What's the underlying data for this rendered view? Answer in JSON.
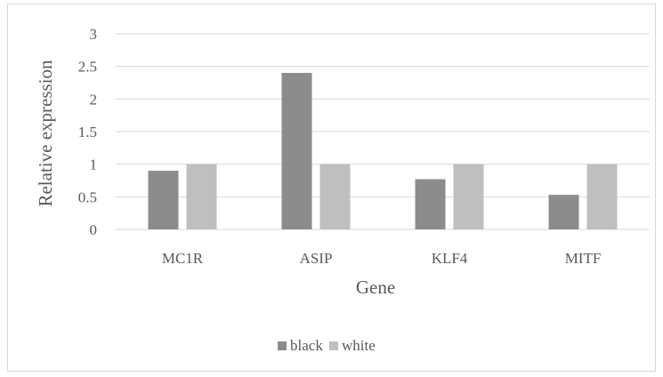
{
  "chart_data": {
    "type": "bar",
    "categories": [
      "MC1R",
      "ASIP",
      "KLF4",
      "MITF"
    ],
    "series": [
      {
        "name": "black",
        "values": [
          0.9,
          2.4,
          0.77,
          0.53
        ],
        "color": "#8c8c8c"
      },
      {
        "name": "white",
        "values": [
          1,
          1,
          1,
          1
        ],
        "color": "#bfbfbf"
      }
    ],
    "title": "",
    "xlabel": "Gene",
    "ylabel": "Relative expression",
    "ylim": [
      0,
      3
    ],
    "yticks": [
      "0",
      "0.5",
      "1",
      "1.5",
      "2",
      "2.5",
      "3"
    ],
    "grid": true,
    "legend_position": "bottom",
    "colors": {
      "gridline": "#d9d9d9",
      "text": "#595959"
    }
  }
}
